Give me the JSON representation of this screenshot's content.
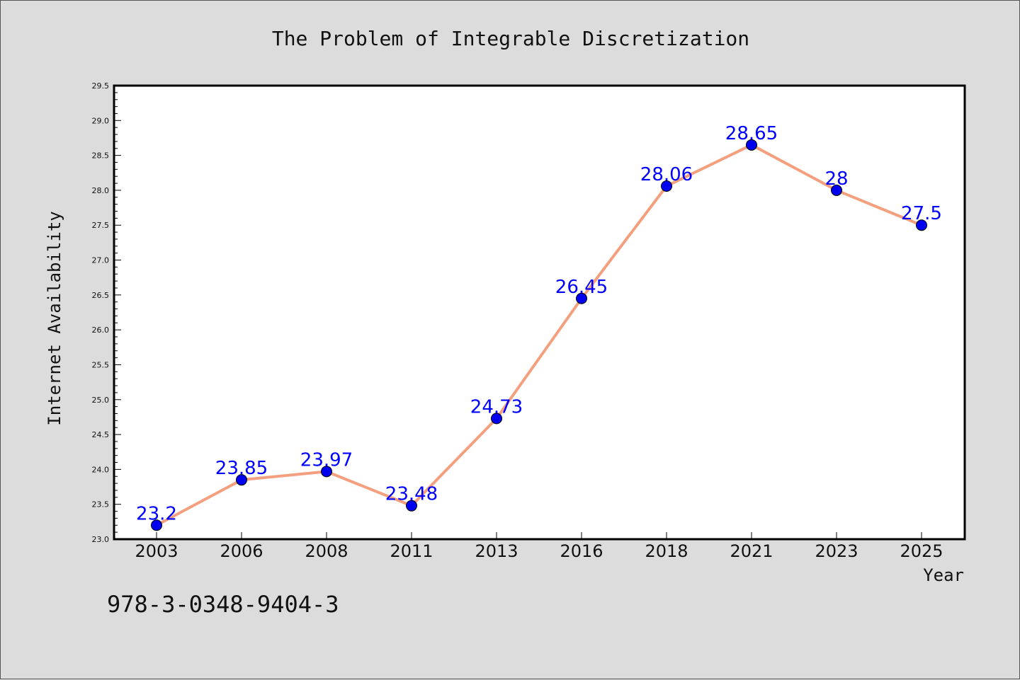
{
  "chart_data": {
    "type": "line",
    "title": "The Problem of Integrable Discretization",
    "xlabel": "Year",
    "ylabel": "Internet Availability",
    "categories": [
      "2003",
      "2006",
      "2008",
      "2011",
      "2013",
      "2016",
      "2018",
      "2021",
      "2023",
      "2025"
    ],
    "values": [
      23.2,
      23.85,
      23.97,
      23.48,
      24.73,
      26.45,
      28.06,
      28.65,
      28,
      27.5
    ],
    "data_labels": [
      "23.2",
      "23.85",
      "23.97",
      "23.48",
      "24.73",
      "26.45",
      "28.06",
      "28.65",
      "28",
      "27.5"
    ],
    "ylim": [
      23.0,
      29.5
    ],
    "yticks": [
      "23.0",
      "23.5",
      "24.0",
      "24.5",
      "25.0",
      "25.5",
      "26.0",
      "26.5",
      "27.0",
      "27.5",
      "28.0",
      "28.5",
      "29.0",
      "29.5"
    ],
    "grid": false,
    "legend": "none",
    "line_color": "#f4a07e",
    "marker_color": "#0000ee",
    "label_color": "#0000ff"
  },
  "annotation": {
    "isbn": "978-3-0348-9404-3"
  }
}
